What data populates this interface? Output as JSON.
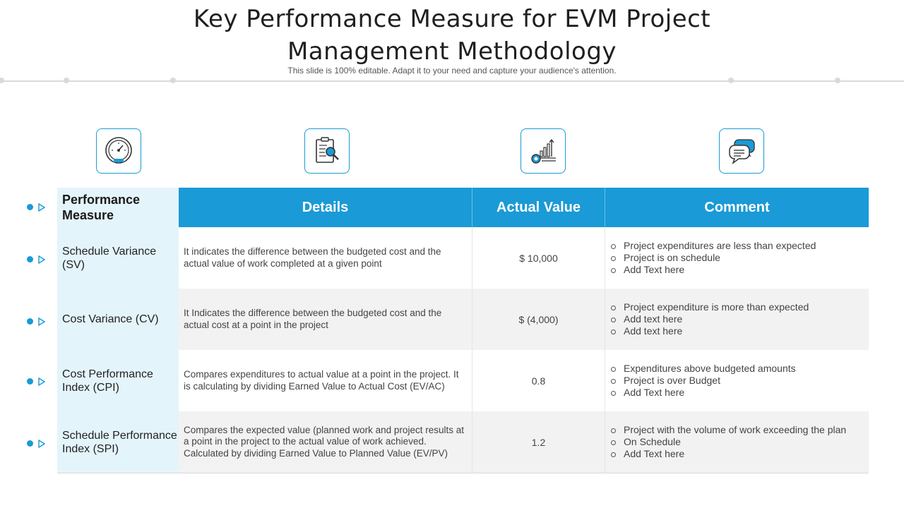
{
  "slide": {
    "title_line1": "Key Performance Measure for EVM Project",
    "title_line2": "Management Methodology",
    "subtitle": "This slide is 100% editable. Adapt it to your need and capture your audience's attention."
  },
  "icons": [
    "speedometer-icon",
    "clipboard-search-icon",
    "growth-chart-icon",
    "chat-bubbles-icon"
  ],
  "colors": {
    "accent": "#1a9ad6",
    "first_column_bg": "#e4f4fb",
    "alt_row_bg": "#f2f2f2"
  },
  "table": {
    "headers": {
      "measure": "Performance Measure",
      "details": "Details",
      "actual_value": "Actual Value",
      "comment": "Comment"
    },
    "rows": [
      {
        "measure": "Schedule Variance (SV)",
        "details": "It indicates the difference between the budgeted cost and the actual value of work completed at a given point",
        "actual_value": "$ 10,000",
        "comments": [
          "Project expenditures are less than expected",
          "Project is on schedule",
          "Add Text here"
        ]
      },
      {
        "measure": "Cost Variance (CV)",
        "details": "It Indicates the difference between the budgeted cost and the actual cost at a point in the project",
        "actual_value": "$ (4,000)",
        "comments": [
          "Project expenditure is more than expected",
          "Add text here",
          "Add text here"
        ]
      },
      {
        "measure": "Cost Performance Index  (CPI)",
        "details": "Compares expenditures to actual value at a point in the project. It is calculating by dividing Earned Value to Actual Cost (EV/AC)",
        "actual_value": "0.8",
        "comments": [
          "Expenditures above budgeted amounts",
          "Project is over Budget",
          "Add Text here"
        ]
      },
      {
        "measure": "Schedule Performance Index (SPI)",
        "details": "Compares the expected value (planned work and project results at a point in the project to the actual value of work achieved. Calculated by dividing Earned Value to Planned Value (EV/PV)",
        "actual_value": "1.2",
        "comments": [
          "Project with the volume of work exceeding the plan",
          "On Schedule",
          "Add Text here"
        ]
      }
    ]
  }
}
